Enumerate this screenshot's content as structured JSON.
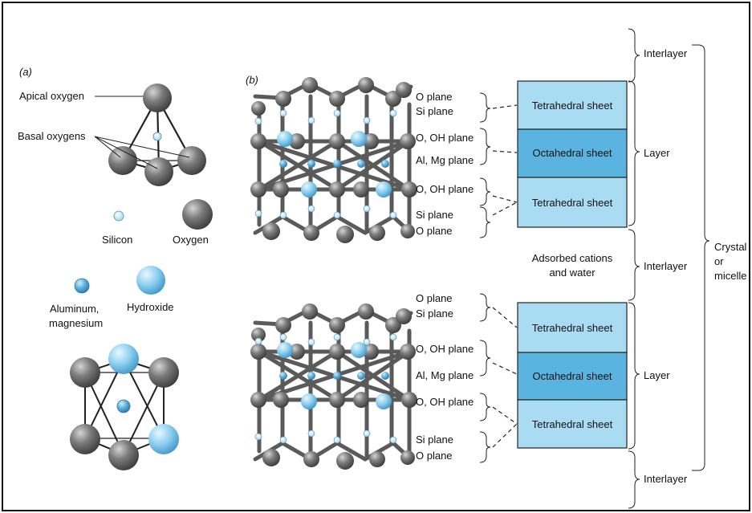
{
  "panel_a": {
    "label": "(a)",
    "apical_oxygen": "Apical oxygen",
    "basal_oxygens": "Basal oxygens",
    "silicon": "Silicon",
    "oxygen": "Oxygen",
    "aluminum_line1": "Aluminum,",
    "aluminum_line2": "magnesium",
    "hydroxide": "Hydroxide"
  },
  "panel_b": {
    "label": "(b)",
    "upper_planes": [
      "O plane",
      "Si plane",
      "O, OH plane",
      "Al, Mg plane",
      "O, OH plane",
      "Si plane",
      "O plane"
    ],
    "lower_planes": [
      "O plane",
      "Si plane",
      "O, OH plane",
      "Al, Mg plane",
      "O, OH plane",
      "Si plane",
      "O plane"
    ],
    "upper_sheets": [
      "Tetrahedral sheet",
      "Octahedral sheet",
      "Tetrahedral sheet"
    ],
    "lower_sheets": [
      "Tetrahedral sheet",
      "Octahedral sheet",
      "Tetrahedral sheet"
    ],
    "adsorbed_line1": "Adsorbed cations",
    "adsorbed_line2": "and water",
    "right_labels": {
      "interlayer_top": "Interlayer",
      "layer_upper": "Layer",
      "interlayer_mid": "Interlayer",
      "layer_lower": "Layer",
      "interlayer_bottom": "Interlayer"
    },
    "crystal_line1": "Crystal",
    "crystal_line2": "or",
    "crystal_line3": "micelle"
  },
  "colors": {
    "tetrahedral_sheet": "#a9dcf2",
    "octahedral_sheet": "#5bb4e0",
    "oxygen_atom": "#6b6b6b",
    "cation_atom": "#5fb0dd",
    "hydroxide_atom": "#8fd0f0",
    "silicon_atom": "#d8eef8"
  }
}
